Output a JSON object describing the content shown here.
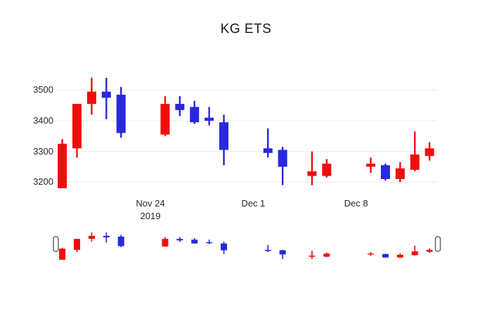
{
  "chart_data": {
    "type": "candlestick",
    "title": "KG ETS",
    "legend": "none",
    "grid": "horizontal-only",
    "colors": {
      "increasing": "#f20d0d",
      "decreasing": "#2828dd",
      "gridline": "#ebebeb",
      "title_text": "#1a1a1a",
      "tick_text": "#262626",
      "background": "#ffffff",
      "slider_handle_border": "#666666",
      "slider_handle_fill": "#ffffff"
    },
    "y_axis": {
      "ticks": [
        3500,
        3400,
        3300,
        3200
      ],
      "range": [
        3170,
        3565
      ]
    },
    "x_axis": {
      "ticks": [
        {
          "label": "Nov 24",
          "year_label": "2019",
          "day": 6
        },
        {
          "label": "Dec 1",
          "year_label": "",
          "day": 13
        },
        {
          "label": "Dec 8",
          "year_label": "",
          "day": 20
        }
      ]
    },
    "candles": [
      {
        "date": "Nov 18",
        "day": 0,
        "open": 3180,
        "high": 3340,
        "low": 3180,
        "close": 3325
      },
      {
        "date": "Nov 19",
        "day": 1,
        "open": 3310,
        "high": 3455,
        "low": 3280,
        "close": 3455
      },
      {
        "date": "Nov 20",
        "day": 2,
        "open": 3455,
        "high": 3540,
        "low": 3420,
        "close": 3495
      },
      {
        "date": "Nov 21",
        "day": 3,
        "open": 3495,
        "high": 3540,
        "low": 3405,
        "close": 3475
      },
      {
        "date": "Nov 22",
        "day": 4,
        "open": 3485,
        "high": 3510,
        "low": 3345,
        "close": 3360
      },
      {
        "date": "Nov 25",
        "day": 7,
        "open": 3355,
        "high": 3480,
        "low": 3350,
        "close": 3455
      },
      {
        "date": "Nov 26",
        "day": 8,
        "open": 3455,
        "high": 3480,
        "low": 3415,
        "close": 3435
      },
      {
        "date": "Nov 27",
        "day": 9,
        "open": 3445,
        "high": 3465,
        "low": 3390,
        "close": 3395
      },
      {
        "date": "Nov 28",
        "day": 10,
        "open": 3410,
        "high": 3445,
        "low": 3385,
        "close": 3400
      },
      {
        "date": "Nov 29",
        "day": 11,
        "open": 3395,
        "high": 3420,
        "low": 3255,
        "close": 3305
      },
      {
        "date": "Dec 2",
        "day": 14,
        "open": 3310,
        "high": 3375,
        "low": 3280,
        "close": 3295
      },
      {
        "date": "Dec 3",
        "day": 15,
        "open": 3305,
        "high": 3315,
        "low": 3190,
        "close": 3250
      },
      {
        "date": "Dec 5",
        "day": 17,
        "open": 3220,
        "high": 3300,
        "low": 3190,
        "close": 3235
      },
      {
        "date": "Dec 6",
        "day": 18,
        "open": 3220,
        "high": 3275,
        "low": 3215,
        "close": 3260
      },
      {
        "date": "Dec 9",
        "day": 21,
        "open": 3250,
        "high": 3280,
        "low": 3230,
        "close": 3260
      },
      {
        "date": "Dec 10",
        "day": 22,
        "open": 3255,
        "high": 3260,
        "low": 3205,
        "close": 3210
      },
      {
        "date": "Dec 11",
        "day": 23,
        "open": 3210,
        "high": 3265,
        "low": 3200,
        "close": 3245
      },
      {
        "date": "Dec 12",
        "day": 24,
        "open": 3240,
        "high": 3365,
        "low": 3235,
        "close": 3290
      },
      {
        "date": "Dec 13",
        "day": 25,
        "open": 3285,
        "high": 3330,
        "low": 3270,
        "close": 3310
      }
    ],
    "rangeslider": {
      "present": true,
      "selected_range": "full"
    }
  }
}
